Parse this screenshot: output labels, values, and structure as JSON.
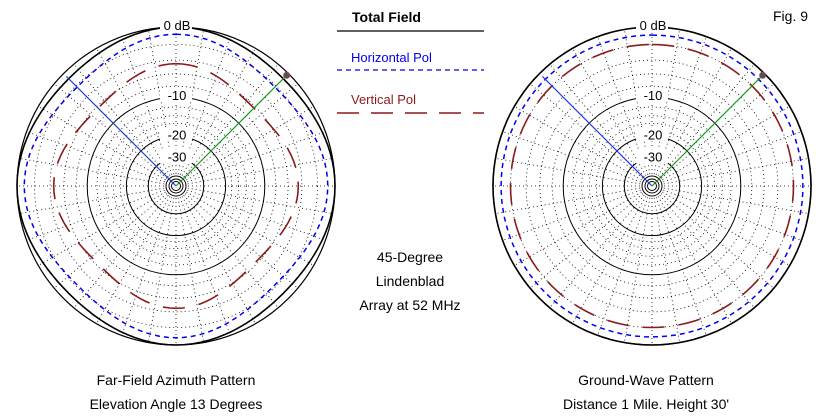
{
  "figure_label": "Fig. 9",
  "legend": {
    "title": "Total Field",
    "horizontal": "Horizontal Pol",
    "vertical": "Vertical Pol"
  },
  "center_note": {
    "line1": "45-Degree",
    "line2": "Lindenblad",
    "line3": "Array at 52 MHz"
  },
  "colors": {
    "total": "#000000",
    "horizontal": "#0000ee",
    "vertical": "#8b1a1a",
    "cursor_left": "#1f3fd8",
    "cursor_right": "#1a9a1a"
  },
  "chart_data": [
    {
      "type": "polar",
      "caption_line1": "Far-Field Azimuth Pattern",
      "caption_line2": "Elevation Angle 13 Degrees",
      "ring_labels": [
        "0 dB",
        "-10",
        "-20",
        "-30"
      ],
      "scale": "log dB",
      "series": [
        {
          "name": "Total Field",
          "style": "solid",
          "db": [
            0,
            -0.4,
            -0.8,
            -0.4
          ]
        },
        {
          "name": "Horizontal Pol",
          "style": "dashed",
          "db": [
            -0.8,
            -1.6,
            -2.2,
            -1.6
          ]
        },
        {
          "name": "Vertical Pol",
          "style": "long-dash",
          "db": [
            -4.5,
            -5.5,
            -6.3,
            -5.5
          ]
        }
      ],
      "cursors": [
        {
          "azimuth_deg": 45,
          "series": "Total Field"
        },
        {
          "azimuth_deg": -45,
          "series": "Horizontal Pol"
        }
      ]
    },
    {
      "type": "polar",
      "caption_line1": "Ground-Wave Pattern",
      "caption_line2": "Distance 1 Mile. Height 30'",
      "ring_labels": [
        "0 dB",
        "-10",
        "-20",
        "-30"
      ],
      "scale": "log dB",
      "series": [
        {
          "name": "Total Field",
          "style": "solid",
          "db": [
            0,
            0,
            0,
            0
          ]
        },
        {
          "name": "Horizontal Pol",
          "style": "dashed",
          "db": [
            -0.9,
            -0.9,
            -0.9,
            -0.9
          ]
        },
        {
          "name": "Vertical Pol",
          "style": "long-dash",
          "db": [
            -2.0,
            -2.0,
            -2.0,
            -2.0
          ]
        }
      ],
      "cursors": [
        {
          "azimuth_deg": 45,
          "series": "Total Field"
        },
        {
          "azimuth_deg": -45,
          "series": "Horizontal Pol"
        }
      ]
    }
  ]
}
